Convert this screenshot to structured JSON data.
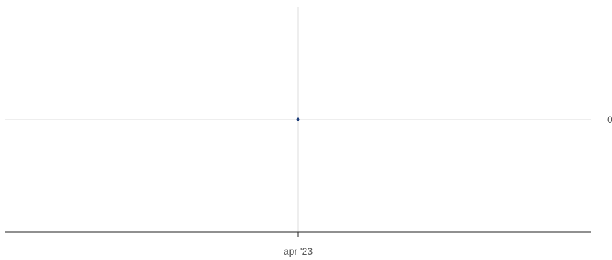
{
  "chart_data": {
    "type": "line",
    "title": "",
    "xlabel": "",
    "ylabel": "",
    "x": [
      "apr '23"
    ],
    "series": [
      {
        "values": [
          0
        ],
        "color": "#1f3f7a"
      }
    ],
    "x_tick_labels": [
      "apr '23"
    ],
    "y_tick_labels": [
      "0"
    ],
    "y_axis_side": "right",
    "grid": true,
    "legend": "none",
    "colors": {
      "grid": "#dddddd",
      "axis": "#222222",
      "point": "#1f3f7a",
      "tick_text": "#555555"
    }
  }
}
